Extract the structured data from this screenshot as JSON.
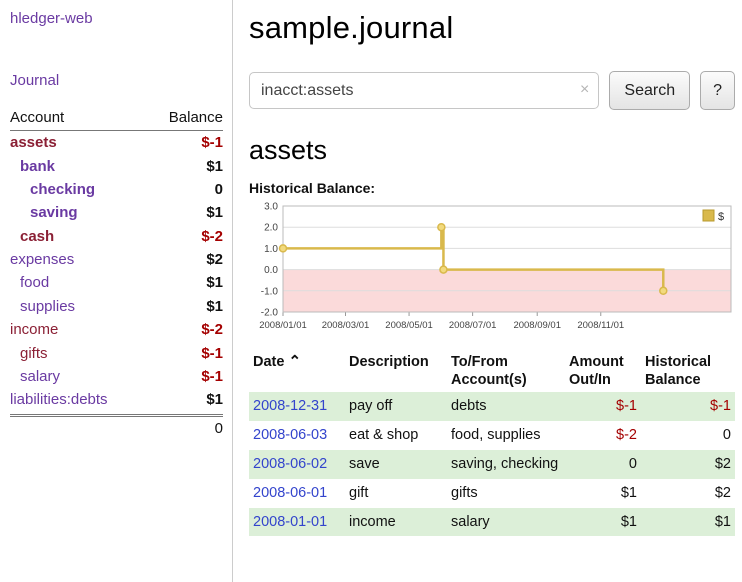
{
  "palette": {
    "purple": "#6a3aa2",
    "maroon": "#8b2035",
    "negative": "#a40000",
    "link_blue": "#3344cc",
    "row_green": "#dcefd8",
    "chart_line": "#d9b94c",
    "chart_marker_fill": "#f2da7e",
    "chart_neg_region": "#fbdada",
    "chart_grid": "#dddddd",
    "chart_border": "#bbbbbb"
  },
  "app": {
    "title": "hledger-web",
    "nav_journal": "Journal"
  },
  "sidebar": {
    "headers": {
      "account": "Account",
      "balance": "Balance"
    },
    "accounts": [
      {
        "name": "assets",
        "indent": 1,
        "bold": true,
        "color": "maroon",
        "balance": "$-1",
        "negative": true
      },
      {
        "name": "bank",
        "indent": 2,
        "bold": true,
        "color": "purple",
        "balance": "$1",
        "negative": false
      },
      {
        "name": "checking",
        "indent": 3,
        "bold": true,
        "color": "purple",
        "balance": "0",
        "negative": false
      },
      {
        "name": "saving",
        "indent": 3,
        "bold": true,
        "color": "purple",
        "balance": "$1",
        "negative": false
      },
      {
        "name": "cash",
        "indent": 2,
        "bold": true,
        "color": "maroon",
        "balance": "$-2",
        "negative": true
      },
      {
        "name": "expenses",
        "indent": 1,
        "bold": false,
        "color": "purple",
        "balance": "$2",
        "negative": false
      },
      {
        "name": "food",
        "indent": 2,
        "bold": false,
        "color": "purple",
        "balance": "$1",
        "negative": false
      },
      {
        "name": "supplies",
        "indent": 2,
        "bold": false,
        "color": "purple",
        "balance": "$1",
        "negative": false
      },
      {
        "name": "income",
        "indent": 1,
        "bold": false,
        "color": "maroon",
        "balance": "$-2",
        "negative": true
      },
      {
        "name": "gifts",
        "indent": 2,
        "bold": false,
        "color": "maroon",
        "balance": "$-1",
        "negative": true
      },
      {
        "name": "salary",
        "indent": 2,
        "bold": false,
        "color": "purple",
        "balance": "$-1",
        "negative": true
      },
      {
        "name": "liabilities:debts",
        "indent": 1,
        "bold": false,
        "color": "purple",
        "balance": "$1",
        "negative": false
      }
    ],
    "total": "0"
  },
  "main": {
    "title": "sample.journal",
    "search": {
      "value": "inacct:assets",
      "clear_icon": "×",
      "button": "Search",
      "help_button": "?"
    },
    "heading": "assets",
    "chart_label": "Historical Balance:"
  },
  "chart_data": {
    "type": "line",
    "title": "Historical Balance",
    "legend": "$",
    "step": true,
    "ylim": [
      -2.0,
      3.0
    ],
    "yticks": [
      3.0,
      2.0,
      1.0,
      0.0,
      -1.0,
      -2.0
    ],
    "x_range_days": [
      0,
      430
    ],
    "xticks": [
      {
        "day": 0,
        "label": "2008/01/01"
      },
      {
        "day": 60,
        "label": "2008/03/01"
      },
      {
        "day": 121,
        "label": "2008/05/01"
      },
      {
        "day": 182,
        "label": "2008/07/01"
      },
      {
        "day": 244,
        "label": "2008/09/01"
      },
      {
        "day": 305,
        "label": "2008/11/01"
      }
    ],
    "series": [
      {
        "name": "$",
        "points": [
          {
            "date": "2008-01-01",
            "day": 0,
            "value": 1.0
          },
          {
            "date": "2008-06-01",
            "day": 152,
            "value": 2.0
          },
          {
            "date": "2008-06-03",
            "day": 154,
            "value": 0.0
          },
          {
            "date": "2008-12-31",
            "day": 365,
            "value": -1.0
          }
        ]
      }
    ]
  },
  "table": {
    "headers": {
      "date": "Date",
      "sort_icon": "⌃",
      "description": "Description",
      "account_line1": "To/From",
      "account_line2": "Account(s)",
      "amount_line1": "Amount",
      "amount_line2": "Out/In",
      "balance_line1": "Historical",
      "balance_line2": "Balance"
    },
    "rows": [
      {
        "date": "2008-12-31",
        "description": "pay off",
        "accounts": [
          "debts"
        ],
        "amount": "$-1",
        "balance": "$-1"
      },
      {
        "date": "2008-06-03",
        "description": "eat & shop",
        "accounts": [
          "food",
          "supplies"
        ],
        "amount": "$-2",
        "balance": "0"
      },
      {
        "date": "2008-06-02",
        "description": "save",
        "accounts": [
          "saving",
          "checking"
        ],
        "amount": "0",
        "balance": "$2"
      },
      {
        "date": "2008-06-01",
        "description": "gift",
        "accounts": [
          "gifts"
        ],
        "amount": "$1",
        "balance": "$2"
      },
      {
        "date": "2008-01-01",
        "description": "income",
        "accounts": [
          "salary"
        ],
        "amount": "$1",
        "balance": "$1"
      }
    ]
  }
}
